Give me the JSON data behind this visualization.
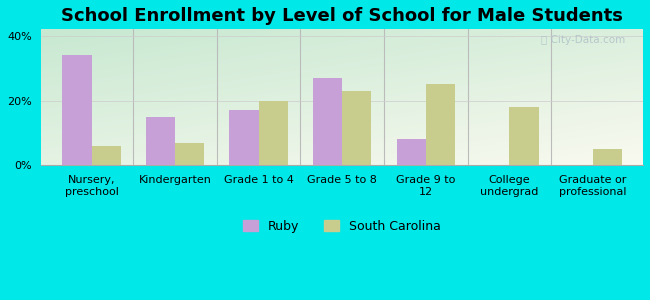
{
  "title": "School Enrollment by Level of School for Male Students",
  "categories": [
    "Nursery,\npreschool",
    "Kindergarten",
    "Grade 1 to 4",
    "Grade 5 to 8",
    "Grade 9 to\n12",
    "College\nundergrad",
    "Graduate or\nprofessional"
  ],
  "ruby_values": [
    34,
    15,
    17,
    27,
    8,
    0,
    0
  ],
  "sc_values": [
    6,
    7,
    20,
    23,
    25,
    18,
    5
  ],
  "ruby_color": "#c8a0d8",
  "sc_color": "#c8cc8c",
  "bar_width": 0.35,
  "ylim": [
    0,
    42
  ],
  "yticks": [
    0,
    20,
    40
  ],
  "ytick_labels": [
    "0%",
    "20%",
    "40%"
  ],
  "legend_labels": [
    "Ruby",
    "South Carolina"
  ],
  "background_outer": "#00e8e8",
  "background_inner_topleft": "#c8e8d0",
  "background_inner_bottomright": "#f8f8f0",
  "title_fontsize": 13,
  "tick_fontsize": 8,
  "legend_fontsize": 9
}
